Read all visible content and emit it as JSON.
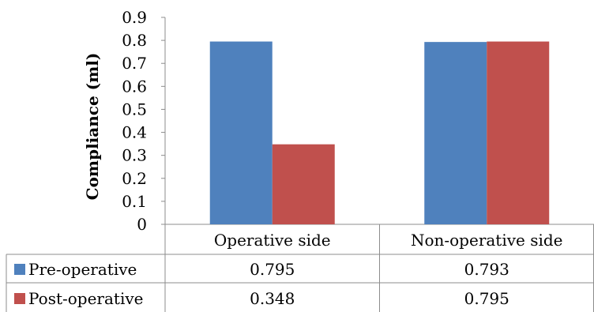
{
  "chart_data": {
    "type": "bar",
    "categories": [
      "Operative side",
      "Non-operative side"
    ],
    "series": [
      {
        "name": "Pre-operative",
        "values": [
          0.795,
          0.793
        ],
        "color": "#4F81BD",
        "labels": [
          "0.795",
          "0.793"
        ]
      },
      {
        "name": "Post-operative",
        "values": [
          0.348,
          0.795
        ],
        "color": "#C0504D",
        "labels": [
          "0.348",
          "0.795"
        ]
      }
    ],
    "ylabel": "Compliance (ml)",
    "ylim": [
      0,
      0.9
    ],
    "yticks": [
      "0",
      "0.1",
      "0.2",
      "0.3",
      "0.4",
      "0.5",
      "0.6",
      "0.7",
      "0.8",
      "0.9"
    ],
    "legend": "data-table",
    "grid": false
  }
}
